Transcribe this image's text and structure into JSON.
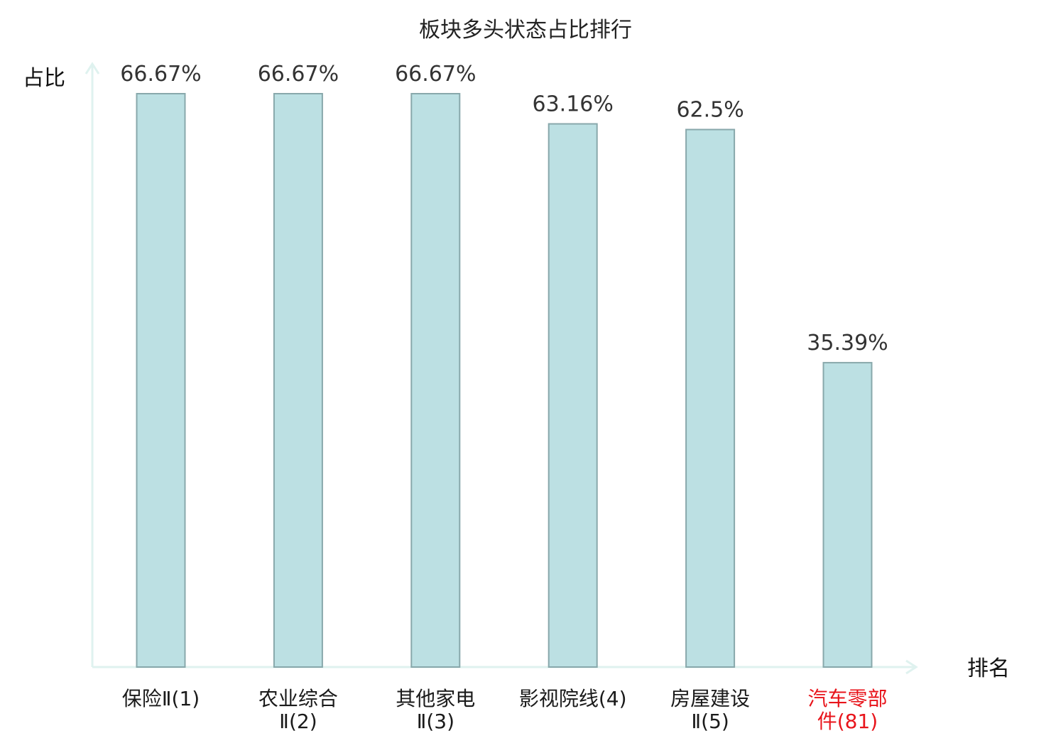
{
  "chart_data": {
    "type": "bar",
    "title": "板块多头状态占比排行",
    "ylabel": "占比",
    "xlabel": "排名",
    "ylim": [
      0,
      70
    ],
    "grid": false,
    "categories": [
      {
        "name": "保险Ⅱ",
        "rank": "(1)",
        "lines": [
          "保险Ⅱ(1)"
        ],
        "highlight": false
      },
      {
        "name": "农业综合Ⅱ",
        "rank": "(2)",
        "lines": [
          "农业综合",
          "Ⅱ(2)"
        ],
        "highlight": false
      },
      {
        "name": "其他家电Ⅱ",
        "rank": "(3)",
        "lines": [
          "其他家电",
          "Ⅱ(3)"
        ],
        "highlight": false
      },
      {
        "name": "影视院线",
        "rank": "(4)",
        "lines": [
          "影视院线(4)"
        ],
        "highlight": false
      },
      {
        "name": "房屋建设Ⅱ",
        "rank": "(5)",
        "lines": [
          "房屋建设",
          "Ⅱ(5)"
        ],
        "highlight": false
      },
      {
        "name": "汽车零部件",
        "rank": "(81)",
        "lines": [
          "汽车零部",
          "件(81)"
        ],
        "highlight": true
      }
    ],
    "values": [
      66.67,
      66.67,
      66.67,
      63.16,
      62.5,
      35.39
    ],
    "value_labels": [
      "66.67%",
      "66.67%",
      "66.67%",
      "63.16%",
      "62.5%",
      "35.39%"
    ],
    "colors": {
      "bar_fill": "#bce0e3",
      "bar_stroke": "#88a8ab",
      "axis": "#dff2ef",
      "highlight_text": "#e8141b",
      "normal_text": "#1a1a1a"
    }
  }
}
